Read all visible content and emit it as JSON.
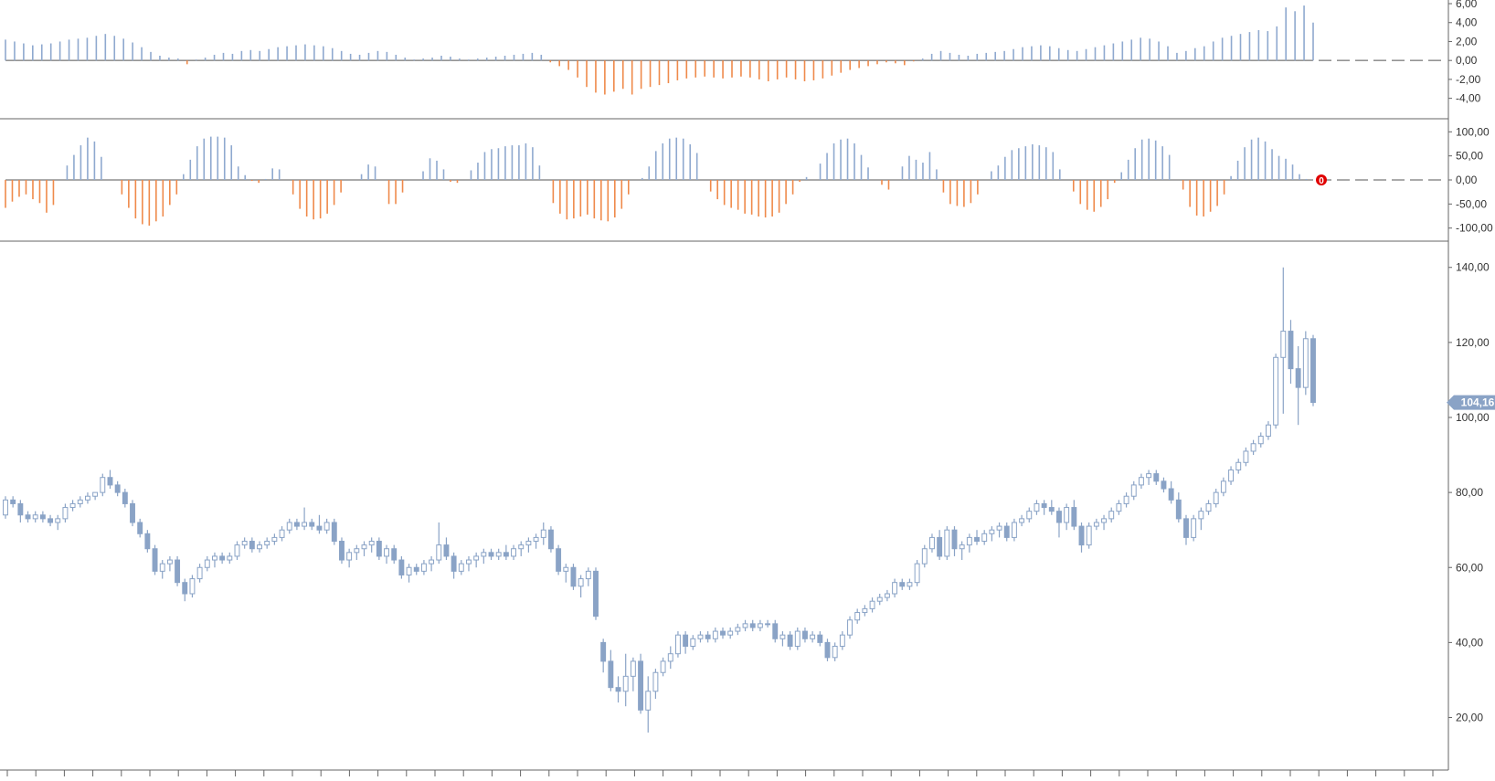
{
  "colors": {
    "up": "#8fa9cf",
    "down": "#ef8a4b",
    "candle": "#8aa3c6",
    "candle_fill": "#8aa3c6",
    "axis": "#555555",
    "marker": "#e00000",
    "price_tag": "#8aa3c6"
  },
  "current_price_label": "104,16",
  "marker_label": "0",
  "chart_data": [
    {
      "type": "bar",
      "title": "",
      "ylim": [
        -5,
        6
      ],
      "y_ticks": [
        "6,00",
        "4,00",
        "2,00",
        "0,00",
        "-2,00",
        "-4,00"
      ],
      "y_tick_values": [
        6,
        4,
        2,
        0,
        -2,
        -4
      ],
      "values": [
        2.2,
        2.0,
        1.8,
        1.6,
        1.7,
        1.8,
        2.0,
        2.2,
        2.3,
        2.4,
        2.6,
        2.8,
        2.6,
        2.3,
        1.9,
        1.4,
        0.9,
        0.5,
        0.3,
        0.2,
        -0.4,
        0.1,
        0.3,
        0.6,
        0.8,
        0.7,
        1.0,
        1.1,
        1.0,
        1.2,
        1.4,
        1.5,
        1.6,
        1.7,
        1.6,
        1.5,
        1.3,
        1.0,
        0.7,
        0.6,
        0.8,
        1.0,
        0.9,
        0.6,
        0.3,
        0.1,
        0.2,
        0.3,
        0.5,
        0.4,
        0.2,
        0.1,
        0.2,
        0.3,
        0.4,
        0.5,
        0.6,
        0.7,
        0.8,
        0.6,
        -0.2,
        -0.6,
        -1.0,
        -1.8,
        -2.8,
        -3.4,
        -3.6,
        -3.3,
        -3.0,
        -3.6,
        -3.0,
        -2.8,
        -2.6,
        -2.4,
        -2.1,
        -1.9,
        -1.8,
        -1.7,
        -1.8,
        -1.9,
        -1.8,
        -1.7,
        -1.8,
        -2.0,
        -2.2,
        -2.0,
        -1.8,
        -2.0,
        -2.2,
        -2.1,
        -1.9,
        -1.6,
        -1.3,
        -1.0,
        -0.8,
        -0.6,
        -0.4,
        -0.2,
        -0.3,
        -0.5,
        -0.1,
        0.2,
        0.7,
        1.0,
        0.8,
        0.6,
        0.5,
        0.7,
        0.8,
        0.9,
        1.0,
        1.2,
        1.4,
        1.5,
        1.6,
        1.5,
        1.3,
        1.1,
        1.0,
        1.2,
        1.4,
        1.6,
        1.8,
        2.0,
        2.2,
        2.4,
        2.3,
        2.0,
        1.5,
        0.8,
        1.0,
        1.3,
        1.5,
        2.0,
        2.4,
        2.6,
        2.8,
        3.0,
        3.2,
        3.1,
        3.6,
        5.6,
        5.2,
        5.8,
        4.0
      ],
      "proj_count": 10
    },
    {
      "type": "bar",
      "title": "",
      "ylim": [
        -112,
        112
      ],
      "y_ticks": [
        "100,00",
        "50,00",
        "0,00",
        "-50,00",
        "-100,00"
      ],
      "y_tick_values": [
        100,
        50,
        0,
        -50,
        -100
      ],
      "values": [
        -58,
        -45,
        -35,
        -30,
        -40,
        -48,
        -68,
        -52,
        0,
        30,
        52,
        72,
        88,
        80,
        48,
        0,
        0,
        -30,
        -58,
        -80,
        -92,
        -95,
        -86,
        -76,
        -52,
        -30,
        12,
        42,
        70,
        86,
        90,
        90,
        88,
        72,
        28,
        10,
        -2,
        -6,
        2,
        24,
        22,
        0,
        -30,
        -60,
        -76,
        -82,
        -80,
        -70,
        -52,
        -26,
        0,
        0,
        12,
        32,
        28,
        0,
        -50,
        -50,
        -26,
        0,
        0,
        18,
        45,
        40,
        22,
        -4,
        -6,
        0,
        20,
        36,
        58,
        64,
        66,
        70,
        72,
        72,
        76,
        68,
        30,
        0,
        -48,
        -70,
        -82,
        -80,
        -76,
        -72,
        -80,
        -84,
        -86,
        -78,
        -60,
        -30,
        0,
        4,
        28,
        60,
        76,
        86,
        88,
        86,
        74,
        56,
        0,
        -24,
        -40,
        -52,
        -58,
        -62,
        -70,
        -72,
        -76,
        -78,
        -76,
        -68,
        -50,
        -30,
        -4,
        6,
        0,
        34,
        56,
        76,
        84,
        86,
        76,
        52,
        26,
        0,
        -10,
        -20,
        0,
        28,
        50,
        42,
        36,
        58,
        22,
        -26,
        -50,
        -54,
        -56,
        -48,
        -30,
        0,
        18,
        30,
        48,
        62,
        66,
        70,
        74,
        72,
        68,
        58,
        22,
        0,
        -24,
        -50,
        -62,
        -66,
        -56,
        -40,
        -6,
        16,
        42,
        66,
        84,
        86,
        82,
        70,
        52,
        0,
        -20,
        -56,
        -74,
        -76,
        -66,
        -54,
        -30,
        8,
        40,
        68,
        84,
        88,
        80,
        64,
        50,
        44,
        32,
        12,
        2,
        0
      ],
      "proj_count": 10
    },
    {
      "type": "candlestick",
      "title": "",
      "ylim": [
        6,
        147
      ],
      "y_ticks": [
        "140,00",
        "120,00",
        "100,00",
        "80,00",
        "60,00",
        "40,00",
        "20,00"
      ],
      "y_tick_values": [
        140,
        120,
        100,
        80,
        60,
        40,
        20
      ],
      "ohlc": [
        [
          74,
          79,
          73,
          78
        ],
        [
          78,
          79,
          76,
          77
        ],
        [
          77,
          78,
          72,
          74
        ],
        [
          74,
          75,
          72,
          73
        ],
        [
          73,
          75,
          72,
          74
        ],
        [
          74,
          75,
          72,
          73
        ],
        [
          73,
          74,
          71,
          72
        ],
        [
          72,
          74,
          70,
          73
        ],
        [
          73,
          77,
          72,
          76
        ],
        [
          76,
          78,
          75,
          77
        ],
        [
          77,
          79,
          76,
          78
        ],
        [
          78,
          80,
          77,
          79
        ],
        [
          79,
          80,
          78,
          80
        ],
        [
          80,
          85,
          79,
          84
        ],
        [
          84,
          86,
          81,
          82
        ],
        [
          82,
          83,
          79,
          80
        ],
        [
          80,
          81,
          76,
          77
        ],
        [
          77,
          78,
          71,
          72
        ],
        [
          72,
          73,
          68,
          69
        ],
        [
          69,
          70,
          64,
          65
        ],
        [
          65,
          66,
          58,
          59
        ],
        [
          59,
          62,
          57,
          61
        ],
        [
          61,
          63,
          59,
          62
        ],
        [
          62,
          63,
          55,
          56
        ],
        [
          56,
          57,
          51,
          53
        ],
        [
          53,
          58,
          52,
          57
        ],
        [
          57,
          61,
          56,
          60
        ],
        [
          60,
          63,
          59,
          62
        ],
        [
          62,
          64,
          60,
          63
        ],
        [
          63,
          64,
          61,
          62
        ],
        [
          62,
          64,
          61,
          63
        ],
        [
          63,
          67,
          62,
          66
        ],
        [
          66,
          68,
          65,
          67
        ],
        [
          67,
          68,
          64,
          65
        ],
        [
          65,
          67,
          64,
          66
        ],
        [
          66,
          68,
          65,
          67
        ],
        [
          67,
          69,
          66,
          68
        ],
        [
          68,
          71,
          67,
          70
        ],
        [
          70,
          73,
          69,
          72
        ],
        [
          72,
          73,
          70,
          71
        ],
        [
          71,
          76,
          70,
          72
        ],
        [
          72,
          73,
          70,
          71
        ],
        [
          71,
          74,
          69,
          70
        ],
        [
          70,
          73,
          69,
          72
        ],
        [
          72,
          73,
          66,
          67
        ],
        [
          67,
          68,
          61,
          62
        ],
        [
          62,
          65,
          60,
          64
        ],
        [
          64,
          66,
          62,
          65
        ],
        [
          65,
          67,
          63,
          66
        ],
        [
          66,
          68,
          64,
          67
        ],
        [
          67,
          68,
          62,
          63
        ],
        [
          63,
          66,
          61,
          65
        ],
        [
          65,
          66,
          61,
          62
        ],
        [
          62,
          63,
          57,
          58
        ],
        [
          58,
          61,
          56,
          60
        ],
        [
          60,
          61,
          58,
          59
        ],
        [
          59,
          62,
          58,
          61
        ],
        [
          61,
          63,
          59,
          62
        ],
        [
          62,
          72,
          61,
          66
        ],
        [
          66,
          68,
          62,
          63
        ],
        [
          63,
          64,
          57,
          59
        ],
        [
          59,
          62,
          58,
          61
        ],
        [
          61,
          63,
          59,
          62
        ],
        [
          62,
          64,
          60,
          63
        ],
        [
          63,
          65,
          61,
          64
        ],
        [
          64,
          65,
          62,
          63
        ],
        [
          63,
          65,
          62,
          64
        ],
        [
          64,
          66,
          62,
          63
        ],
        [
          63,
          66,
          62,
          65
        ],
        [
          65,
          67,
          63,
          66
        ],
        [
          66,
          68,
          64,
          67
        ],
        [
          67,
          69,
          65,
          68
        ],
        [
          68,
          72,
          66,
          70
        ],
        [
          70,
          71,
          64,
          65
        ],
        [
          65,
          66,
          58,
          59
        ],
        [
          59,
          61,
          56,
          60
        ],
        [
          60,
          61,
          54,
          55
        ],
        [
          55,
          58,
          52,
          57
        ],
        [
          57,
          60,
          55,
          59
        ],
        [
          59,
          60,
          46,
          47
        ],
        [
          40,
          41,
          32,
          35
        ],
        [
          35,
          38,
          27,
          28
        ],
        [
          28,
          31,
          24,
          27
        ],
        [
          27,
          37,
          23,
          31
        ],
        [
          31,
          36,
          27,
          35
        ],
        [
          35,
          37,
          21,
          22
        ],
        [
          22,
          31,
          16,
          27
        ],
        [
          27,
          33,
          25,
          32
        ],
        [
          32,
          36,
          31,
          35
        ],
        [
          35,
          39,
          33,
          37
        ],
        [
          37,
          43,
          36,
          42
        ],
        [
          42,
          43,
          37,
          39
        ],
        [
          39,
          42,
          38,
          41
        ],
        [
          41,
          43,
          40,
          42
        ],
        [
          42,
          43,
          40,
          41
        ],
        [
          41,
          44,
          40,
          43
        ],
        [
          43,
          44,
          41,
          42
        ],
        [
          42,
          44,
          41,
          43
        ],
        [
          43,
          45,
          42,
          44
        ],
        [
          44,
          46,
          43,
          45
        ],
        [
          45,
          46,
          43,
          44
        ],
        [
          44,
          46,
          43,
          45
        ],
        [
          45,
          46,
          44,
          45
        ],
        [
          45,
          46,
          40,
          41
        ],
        [
          41,
          43,
          39,
          42
        ],
        [
          42,
          43,
          38,
          39
        ],
        [
          39,
          44,
          38,
          43
        ],
        [
          43,
          44,
          40,
          41
        ],
        [
          41,
          43,
          40,
          42
        ],
        [
          42,
          43,
          39,
          40
        ],
        [
          40,
          41,
          35,
          36
        ],
        [
          36,
          40,
          35,
          39
        ],
        [
          39,
          43,
          38,
          42
        ],
        [
          42,
          47,
          41,
          46
        ],
        [
          46,
          49,
          45,
          48
        ],
        [
          48,
          50,
          47,
          49
        ],
        [
          49,
          52,
          48,
          51
        ],
        [
          51,
          53,
          50,
          52
        ],
        [
          52,
          54,
          51,
          53
        ],
        [
          53,
          57,
          52,
          56
        ],
        [
          56,
          57,
          54,
          55
        ],
        [
          55,
          57,
          54,
          56
        ],
        [
          56,
          62,
          55,
          61
        ],
        [
          61,
          66,
          60,
          65
        ],
        [
          65,
          69,
          64,
          68
        ],
        [
          68,
          70,
          62,
          63
        ],
        [
          63,
          71,
          62,
          70
        ],
        [
          70,
          71,
          63,
          65
        ],
        [
          65,
          67,
          62,
          66
        ],
        [
          66,
          69,
          64,
          68
        ],
        [
          68,
          70,
          66,
          67
        ],
        [
          67,
          70,
          66,
          69
        ],
        [
          69,
          71,
          67,
          70
        ],
        [
          70,
          72,
          68,
          71
        ],
        [
          71,
          72,
          67,
          68
        ],
        [
          68,
          73,
          67,
          72
        ],
        [
          72,
          74,
          71,
          73
        ],
        [
          73,
          76,
          72,
          75
        ],
        [
          75,
          78,
          74,
          77
        ],
        [
          77,
          78,
          74,
          76
        ],
        [
          76,
          78,
          74,
          75
        ],
        [
          75,
          76,
          68,
          72
        ],
        [
          72,
          77,
          70,
          76
        ],
        [
          76,
          78,
          70,
          71
        ],
        [
          71,
          72,
          64,
          66
        ],
        [
          66,
          72,
          65,
          71
        ],
        [
          71,
          73,
          70,
          72
        ],
        [
          72,
          74,
          70,
          73
        ],
        [
          73,
          76,
          72,
          75
        ],
        [
          75,
          78,
          74,
          77
        ],
        [
          77,
          80,
          76,
          79
        ],
        [
          79,
          83,
          78,
          82
        ],
        [
          82,
          85,
          81,
          84
        ],
        [
          84,
          86,
          82,
          85
        ],
        [
          85,
          86,
          82,
          83
        ],
        [
          83,
          84,
          80,
          81
        ],
        [
          81,
          83,
          77,
          78
        ],
        [
          78,
          80,
          72,
          73
        ],
        [
          73,
          74,
          66,
          68
        ],
        [
          68,
          74,
          67,
          73
        ],
        [
          73,
          76,
          70,
          75
        ],
        [
          75,
          78,
          74,
          77
        ],
        [
          77,
          81,
          76,
          80
        ],
        [
          80,
          84,
          79,
          83
        ],
        [
          83,
          87,
          82,
          86
        ],
        [
          86,
          89,
          85,
          88
        ],
        [
          88,
          92,
          87,
          91
        ],
        [
          91,
          94,
          90,
          93
        ],
        [
          93,
          96,
          92,
          95
        ],
        [
          95,
          99,
          94,
          98
        ],
        [
          98,
          117,
          97,
          116
        ],
        [
          116,
          140,
          101,
          123
        ],
        [
          123,
          126,
          109,
          113
        ],
        [
          113,
          119,
          98,
          108
        ],
        [
          108,
          123,
          106,
          121
        ],
        [
          121,
          122,
          103,
          104
        ]
      ],
      "proj_count": 10
    }
  ]
}
